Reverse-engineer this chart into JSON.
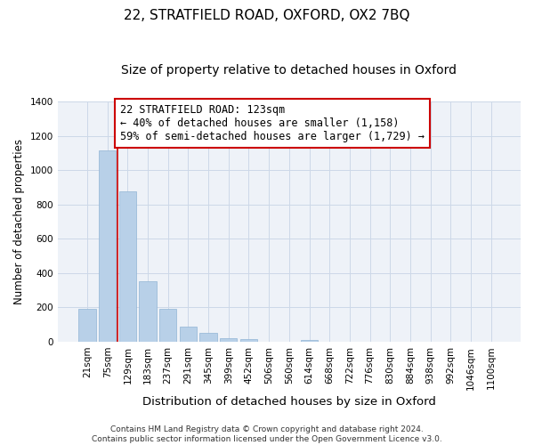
{
  "title": "22, STRATFIELD ROAD, OXFORD, OX2 7BQ",
  "subtitle": "Size of property relative to detached houses in Oxford",
  "xlabel": "Distribution of detached houses by size in Oxford",
  "ylabel": "Number of detached properties",
  "bar_labels": [
    "21sqm",
    "75sqm",
    "129sqm",
    "183sqm",
    "237sqm",
    "291sqm",
    "345sqm",
    "399sqm",
    "452sqm",
    "506sqm",
    "560sqm",
    "614sqm",
    "668sqm",
    "722sqm",
    "776sqm",
    "830sqm",
    "884sqm",
    "938sqm",
    "992sqm",
    "1046sqm",
    "1100sqm"
  ],
  "bar_heights": [
    193,
    1113,
    878,
    352,
    193,
    90,
    53,
    22,
    14,
    0,
    0,
    10,
    0,
    0,
    0,
    0,
    0,
    0,
    0,
    0,
    0
  ],
  "bar_color": "#b8d0e8",
  "bar_edge_color": "#90b4d4",
  "vline_x_idx": 2,
  "vline_color": "#cc0000",
  "annotation_text": "22 STRATFIELD ROAD: 123sqm\n← 40% of detached houses are smaller (1,158)\n59% of semi-detached houses are larger (1,729) →",
  "annotation_box_facecolor": "#ffffff",
  "annotation_box_edgecolor": "#cc0000",
  "ylim": [
    0,
    1400
  ],
  "yticks": [
    0,
    200,
    400,
    600,
    800,
    1000,
    1200,
    1400
  ],
  "grid_color": "#ccd8e8",
  "axes_facecolor": "#eef2f8",
  "figure_facecolor": "#ffffff",
  "footnote": "Contains HM Land Registry data © Crown copyright and database right 2024.\nContains public sector information licensed under the Open Government Licence v3.0.",
  "title_fontsize": 11,
  "subtitle_fontsize": 10,
  "xlabel_fontsize": 9.5,
  "ylabel_fontsize": 8.5,
  "tick_fontsize": 7.5,
  "annot_fontsize": 8.5,
  "footnote_fontsize": 6.5
}
